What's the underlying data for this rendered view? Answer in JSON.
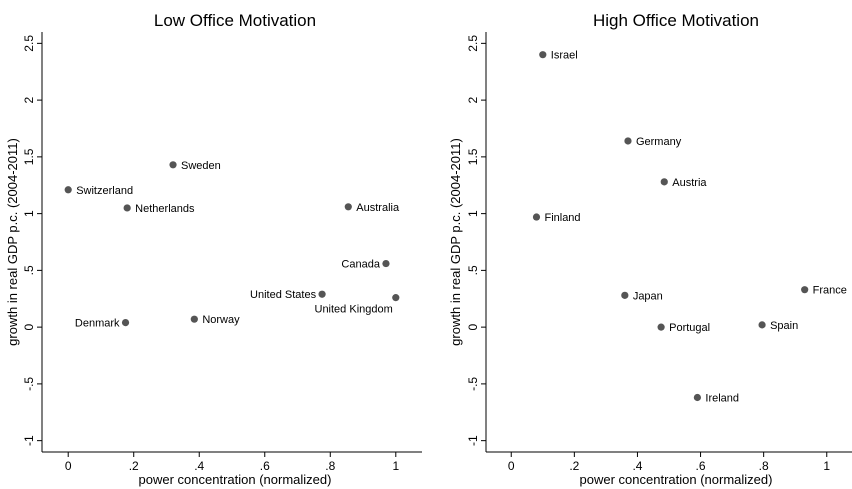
{
  "colors": {
    "point": "#555555",
    "axis": "#000000",
    "background": "#ffffff"
  },
  "chart_data": [
    {
      "type": "scatter",
      "title": "Low Office Motivation",
      "xlabel": "power concentration (normalized)",
      "ylabel": "growth in real GDP p.c. (2004-2011)",
      "xlim": [
        -0.08,
        1.08
      ],
      "ylim": [
        -1.1,
        2.6
      ],
      "grid": false,
      "x_ticks": [
        0,
        0.2,
        0.4,
        0.6,
        0.8,
        1
      ],
      "x_tick_labels": [
        "0",
        ".2",
        ".4",
        ".6",
        ".8",
        "1"
      ],
      "y_ticks": [
        -1,
        -0.5,
        0,
        0.5,
        1,
        1.5,
        2,
        2.5
      ],
      "y_tick_labels": [
        "-1",
        "-.5",
        "0",
        ".5",
        "1",
        "1.5",
        "2",
        "2.5"
      ],
      "points": [
        {
          "label": "Switzerland",
          "x": 0.0,
          "y": 1.21,
          "label_side": "right"
        },
        {
          "label": "Sweden",
          "x": 0.32,
          "y": 1.43,
          "label_side": "right"
        },
        {
          "label": "Netherlands",
          "x": 0.18,
          "y": 1.05,
          "label_side": "right"
        },
        {
          "label": "Australia",
          "x": 0.855,
          "y": 1.06,
          "label_side": "right"
        },
        {
          "label": "Canada",
          "x": 0.97,
          "y": 0.56,
          "label_side": "left"
        },
        {
          "label": "United States",
          "x": 0.775,
          "y": 0.29,
          "label_side": "left"
        },
        {
          "label": "United Kingdom",
          "x": 1.0,
          "y": 0.26,
          "label_side": "below-left"
        },
        {
          "label": "Denmark",
          "x": 0.175,
          "y": 0.04,
          "label_side": "left"
        },
        {
          "label": "Norway",
          "x": 0.385,
          "y": 0.07,
          "label_side": "right"
        }
      ]
    },
    {
      "type": "scatter",
      "title": "High Office Motivation",
      "xlabel": "power concentration (normalized)",
      "ylabel": "growth in real GDP p.c. (2004-2011)",
      "xlim": [
        -0.08,
        1.08
      ],
      "ylim": [
        -1.1,
        2.6
      ],
      "grid": false,
      "x_ticks": [
        0,
        0.2,
        0.4,
        0.6,
        0.8,
        1
      ],
      "x_tick_labels": [
        "0",
        ".2",
        ".4",
        ".6",
        ".8",
        "1"
      ],
      "y_ticks": [
        -1,
        -0.5,
        0,
        0.5,
        1,
        1.5,
        2,
        2.5
      ],
      "y_tick_labels": [
        "-1",
        "-.5",
        "0",
        ".5",
        "1",
        "1.5",
        "2",
        "2.5"
      ],
      "points": [
        {
          "label": "Israel",
          "x": 0.1,
          "y": 2.4,
          "label_side": "right"
        },
        {
          "label": "Germany",
          "x": 0.37,
          "y": 1.64,
          "label_side": "right"
        },
        {
          "label": "Austria",
          "x": 0.485,
          "y": 1.28,
          "label_side": "right"
        },
        {
          "label": "Finland",
          "x": 0.08,
          "y": 0.97,
          "label_side": "right"
        },
        {
          "label": "Japan",
          "x": 0.36,
          "y": 0.28,
          "label_side": "right"
        },
        {
          "label": "France",
          "x": 0.93,
          "y": 0.33,
          "label_side": "right"
        },
        {
          "label": "Portugal",
          "x": 0.475,
          "y": 0.0,
          "label_side": "right"
        },
        {
          "label": "Spain",
          "x": 0.795,
          "y": 0.02,
          "label_side": "right"
        },
        {
          "label": "Ireland",
          "x": 0.59,
          "y": -0.62,
          "label_side": "right"
        }
      ]
    }
  ]
}
